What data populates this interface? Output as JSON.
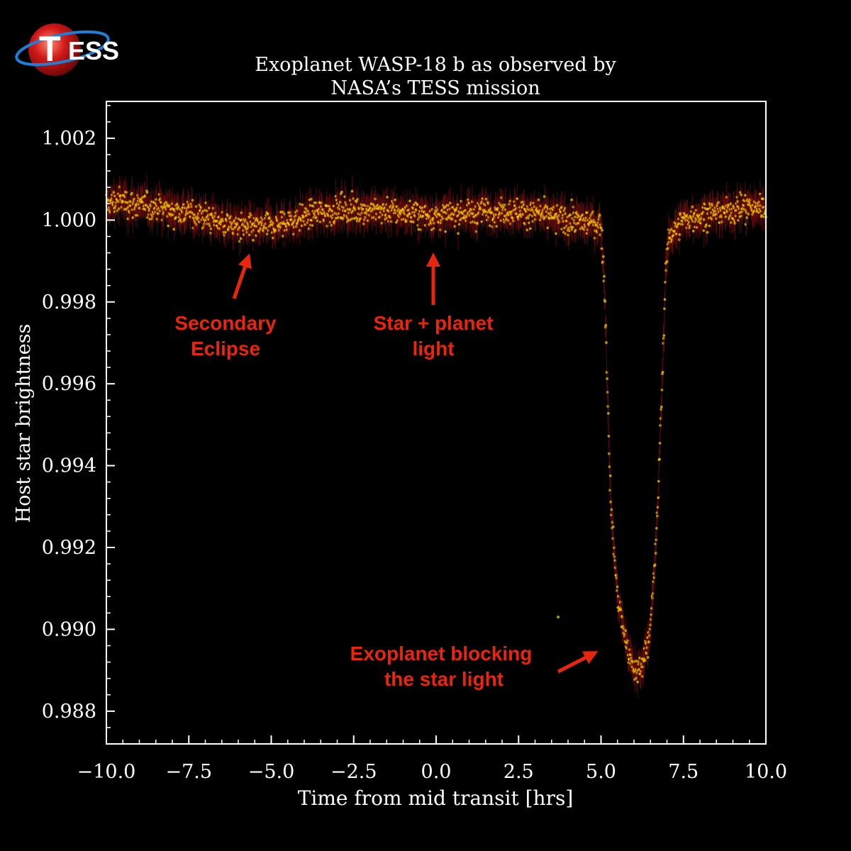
{
  "logo": {
    "text_letter": "T",
    "text_rest": "ESS",
    "colors": {
      "globe": "#d21a1a",
      "ring": "#1e7fd6",
      "text": "#ffffff"
    }
  },
  "chart_data": {
    "type": "scatter",
    "title_line1": "Exoplanet WASP-18 b as observed by",
    "title_line2": "NASA’s TESS mission",
    "xlabel": "Time from mid transit [hrs]",
    "ylabel": "Host star brightness",
    "xlim": [
      -10.0,
      10.0
    ],
    "ylim": [
      0.9872,
      1.0029
    ],
    "x_ticks": [
      "−10.0",
      "−7.5",
      "−5.0",
      "−2.5",
      "0.0",
      "2.5",
      "5.0",
      "7.5",
      "10.0"
    ],
    "x_tick_values": [
      -10.0,
      -7.5,
      -5.0,
      -2.5,
      0.0,
      2.5,
      5.0,
      7.5,
      10.0
    ],
    "y_ticks": [
      "0.988",
      "0.990",
      "0.992",
      "0.994",
      "0.996",
      "0.998",
      "1.000",
      "1.002"
    ],
    "y_tick_values": [
      0.988,
      0.99,
      0.992,
      0.994,
      0.996,
      0.998,
      1.0,
      1.002
    ],
    "grid": false,
    "colors": {
      "points": "#ffd400",
      "errorbars": "#7a1010",
      "annotations": "#e8260f",
      "axes": "#ffffff"
    },
    "series": [
      {
        "values": [
          [
            -10.0,
            1.0004
          ],
          [
            -9.5,
            1.00048
          ],
          [
            -9.0,
            1.00035
          ],
          [
            -8.5,
            1.00033
          ],
          [
            -8.0,
            1.00025
          ],
          [
            -7.5,
            1.00018
          ],
          [
            -7.0,
            1.00008
          ],
          [
            -6.5,
            0.99995
          ],
          [
            -6.0,
            0.99983
          ],
          [
            -5.5,
            0.9998
          ],
          [
            -5.0,
            0.99985
          ],
          [
            -4.5,
            0.99995
          ],
          [
            -4.0,
            1.00008
          ],
          [
            -3.5,
            1.00018
          ],
          [
            -3.0,
            1.00024
          ],
          [
            -2.5,
            1.00026
          ],
          [
            -2.0,
            1.00025
          ],
          [
            -1.5,
            1.00022
          ],
          [
            -1.0,
            1.00018
          ],
          [
            -0.5,
            1.00013
          ],
          [
            0.0,
            1.0001
          ],
          [
            0.5,
            1.00012
          ],
          [
            1.0,
            1.00018
          ],
          [
            1.5,
            1.00022
          ],
          [
            2.0,
            1.00024
          ],
          [
            2.5,
            1.00022
          ],
          [
            3.0,
            1.00016
          ],
          [
            3.5,
            1.00008
          ],
          [
            4.0,
            1.0
          ],
          [
            4.5,
            0.99995
          ],
          [
            5.0,
            0.9999
          ],
          [
            5.1,
            0.9985
          ],
          [
            5.2,
            0.9958
          ],
          [
            5.3,
            0.993
          ],
          [
            5.5,
            0.9908
          ],
          [
            5.8,
            0.9895
          ],
          [
            6.0,
            0.989
          ],
          [
            6.2,
            0.989
          ],
          [
            6.5,
            0.99
          ],
          [
            6.7,
            0.9925
          ],
          [
            6.85,
            0.996
          ],
          [
            6.95,
            0.9985
          ],
          [
            7.05,
            0.9996
          ],
          [
            7.5,
            1.0
          ],
          [
            8.0,
            1.0001
          ],
          [
            8.5,
            1.00018
          ],
          [
            9.0,
            1.00025
          ],
          [
            9.5,
            1.0003
          ],
          [
            10.0,
            1.00035
          ]
        ]
      }
    ],
    "annotations": [
      {
        "line1": "Secondary",
        "line2": "Eclipse",
        "x": -5.7,
        "y": 0.9999
      },
      {
        "line1": "Star + planet",
        "line2": "light",
        "x": -0.2,
        "y": 0.99995
      },
      {
        "line1": "Exoplanet blocking",
        "line2": "the star light",
        "x": 5.1,
        "y": 0.9896
      }
    ]
  }
}
